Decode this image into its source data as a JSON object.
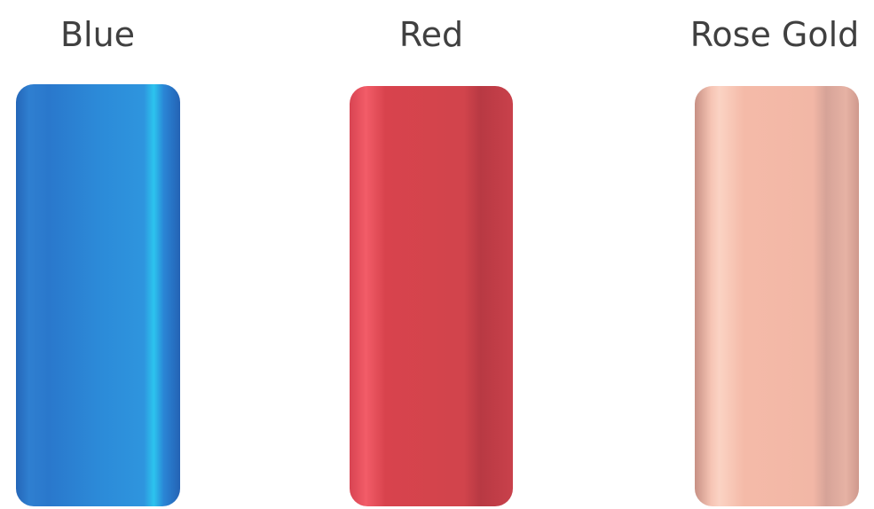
{
  "swatches": [
    {
      "label": "Blue"
    },
    {
      "label": "Red"
    },
    {
      "label": "Rose Gold"
    }
  ]
}
